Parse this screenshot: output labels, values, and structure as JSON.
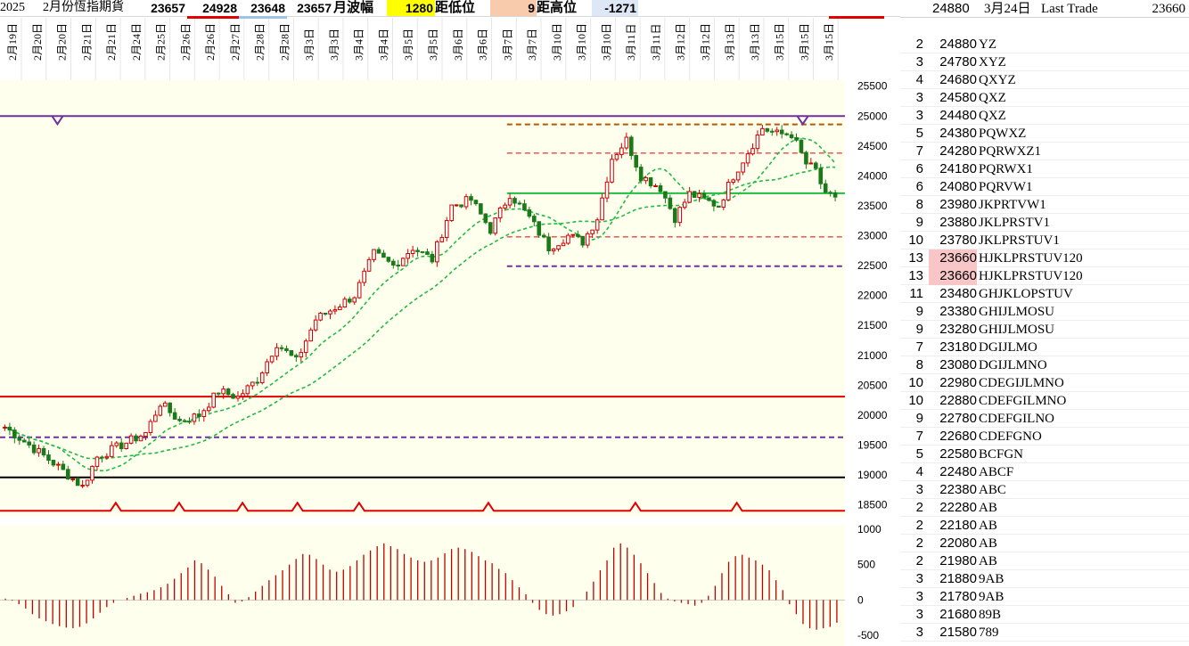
{
  "header": {
    "cells": [
      {
        "key": "year",
        "text": "2025",
        "x": 0,
        "w": 48,
        "bg": "#ffffff",
        "cls": ""
      },
      {
        "key": "title",
        "text": "2月份恆指期貨",
        "x": 48,
        "w": 112,
        "bg": "#ffffff",
        "cls": ""
      },
      {
        "key": "open",
        "text": "23657",
        "x": 160,
        "w": 50,
        "bg": "#ffffff",
        "cls": "num"
      },
      {
        "key": "high",
        "text": "24928",
        "x": 210,
        "w": 58,
        "bg": "#ffffff",
        "cls": "num"
      },
      {
        "key": "low",
        "text": "23648",
        "x": 268,
        "w": 54,
        "bg": "#ffffff",
        "cls": "num"
      },
      {
        "key": "close",
        "text": "23657",
        "x": 322,
        "w": 52,
        "bg": "#ffffff",
        "cls": "num"
      },
      {
        "key": "range_label",
        "text": "月波幅",
        "x": 374,
        "w": 60,
        "bg": "#ffffff",
        "cls": "lbl"
      },
      {
        "key": "range",
        "text": "1280",
        "x": 434,
        "w": 54,
        "bg": "#ffff00",
        "cls": "num"
      },
      {
        "key": "to_low_label",
        "text": "距低位",
        "x": 488,
        "w": 62,
        "bg": "#ffffff",
        "cls": "lbl"
      },
      {
        "key": "to_low",
        "text": "9",
        "x": 550,
        "w": 52,
        "bg": "#f8cbad",
        "cls": "num"
      },
      {
        "key": "to_high_label",
        "text": "距高位",
        "x": 602,
        "w": 62,
        "bg": "#ffffff",
        "cls": "lbl"
      },
      {
        "key": "to_high",
        "text": "-1271",
        "x": 664,
        "w": 52,
        "bg": "#dde7f5",
        "cls": "num"
      }
    ]
  },
  "side": {
    "top_price": "24880",
    "top_date": "3月24日",
    "top_label": "Last Trade",
    "last_value": "23660",
    "rows": [
      {
        "cnt": "2",
        "price": "24880",
        "letters": "YZ",
        "hl": false
      },
      {
        "cnt": "3",
        "price": "24780",
        "letters": "XYZ",
        "hl": false
      },
      {
        "cnt": "4",
        "price": "24680",
        "letters": "QXYZ",
        "hl": false
      },
      {
        "cnt": "3",
        "price": "24580",
        "letters": "QXZ",
        "hl": false
      },
      {
        "cnt": "3",
        "price": "24480",
        "letters": "QXZ",
        "hl": false
      },
      {
        "cnt": "5",
        "price": "24380",
        "letters": "PQWXZ",
        "hl": false
      },
      {
        "cnt": "7",
        "price": "24280",
        "letters": "PQRWXZ1",
        "hl": false
      },
      {
        "cnt": "6",
        "price": "24180",
        "letters": "PQRWX1",
        "hl": false
      },
      {
        "cnt": "6",
        "price": "24080",
        "letters": "PQRVW1",
        "hl": false
      },
      {
        "cnt": "8",
        "price": "23980",
        "letters": "JKPRTVW1",
        "hl": false
      },
      {
        "cnt": "9",
        "price": "23880",
        "letters": "JKLPRSTV1",
        "hl": false
      },
      {
        "cnt": "10",
        "price": "23780",
        "letters": "JKLPRSTUV1",
        "hl": false
      },
      {
        "cnt": "13",
        "price": "23660",
        "letters": "HJKLPRSTUV120",
        "hl": true
      },
      {
        "cnt": "13",
        "price": "23660",
        "letters": "HJKLPRSTUV120",
        "hl": true
      },
      {
        "cnt": "11",
        "price": "23480",
        "letters": "GHJKLOPSTUV",
        "hl": false
      },
      {
        "cnt": "9",
        "price": "23380",
        "letters": "GHIJLMOSU",
        "hl": false
      },
      {
        "cnt": "9",
        "price": "23280",
        "letters": "GHIJLMOSU",
        "hl": false
      },
      {
        "cnt": "7",
        "price": "23180",
        "letters": "DGIJLMO",
        "hl": false
      },
      {
        "cnt": "8",
        "price": "23080",
        "letters": "DGIJLMNO",
        "hl": false
      },
      {
        "cnt": "10",
        "price": "22980",
        "letters": "CDEGIJLMNO",
        "hl": false
      },
      {
        "cnt": "10",
        "price": "22880",
        "letters": "CDEFGILMNO",
        "hl": false
      },
      {
        "cnt": "9",
        "price": "22780",
        "letters": "CDEFGILNO",
        "hl": false
      },
      {
        "cnt": "7",
        "price": "22680",
        "letters": "CDEFGNO",
        "hl": false
      },
      {
        "cnt": "5",
        "price": "22580",
        "letters": "BCFGN",
        "hl": false
      },
      {
        "cnt": "4",
        "price": "22480",
        "letters": "ABCF",
        "hl": false
      },
      {
        "cnt": "3",
        "price": "22380",
        "letters": "ABC",
        "hl": false
      },
      {
        "cnt": "2",
        "price": "22280",
        "letters": "AB",
        "hl": false
      },
      {
        "cnt": "2",
        "price": "22180",
        "letters": "AB",
        "hl": false
      },
      {
        "cnt": "2",
        "price": "22080",
        "letters": "AB",
        "hl": false
      },
      {
        "cnt": "2",
        "price": "21980",
        "letters": "AB",
        "hl": false
      },
      {
        "cnt": "3",
        "price": "21880",
        "letters": "9AB",
        "hl": false
      },
      {
        "cnt": "3",
        "price": "21780",
        "letters": "9AB",
        "hl": false
      },
      {
        "cnt": "3",
        "price": "21680",
        "letters": "89B",
        "hl": false
      },
      {
        "cnt": "3",
        "price": "21580",
        "letters": "789",
        "hl": false
      }
    ]
  },
  "chart_data": {
    "type": "candlestick",
    "x_labels": [
      "2月19日",
      "2月20日",
      "2月20日",
      "2月21日",
      "2月21日",
      "2月24日",
      "2月25日",
      "2月26日",
      "2月26日",
      "2月27日",
      "2月28日",
      "2月28日",
      "3月3日",
      "3月3日",
      "3月4日",
      "3月4日",
      "3月5日",
      "3月5日",
      "3月6日",
      "3月6日",
      "3月7日",
      "3月7日",
      "3月10日",
      "3月10日",
      "3月10日",
      "3月11日",
      "3月11日",
      "3月12日",
      "3月12日",
      "3月13日",
      "3月13日",
      "3月15日",
      "3月15日",
      "3月15日"
    ],
    "price_axis": {
      "min": 18300,
      "max": 25600,
      "ticks": [
        25500,
        25000,
        24500,
        24000,
        23500,
        23000,
        22500,
        22000,
        21500,
        21000,
        20500,
        20000,
        19500,
        19000,
        18500
      ]
    },
    "osc_axis": {
      "min": -650,
      "max": 1050,
      "ticks": [
        1000,
        500,
        0,
        -500
      ]
    },
    "colors": {
      "up": "#d00000",
      "down": "#1a7a1a",
      "ma": "#22bb44",
      "purple": "#7030a0",
      "red": "#e00000",
      "brown": "#b35900",
      "black": "#000000"
    },
    "h_lines": [
      {
        "price": 25000,
        "color": "#7030a0",
        "style": "solid",
        "width": 2,
        "from": 0,
        "to": 1
      },
      {
        "price": 24860,
        "color": "#b35900",
        "style": "dash",
        "width": 2,
        "from": 0.6,
        "to": 1
      },
      {
        "price": 24380,
        "color": "#e00000",
        "style": "dash",
        "width": 1,
        "from": 0.6,
        "to": 1
      },
      {
        "price": 23710,
        "color": "#22bb44",
        "style": "solid",
        "width": 2,
        "from": 0.6,
        "to": 1
      },
      {
        "price": 22980,
        "color": "#e00000",
        "style": "dash",
        "width": 1,
        "from": 0.6,
        "to": 1
      },
      {
        "price": 22490,
        "color": "#7030a0",
        "style": "dash",
        "width": 2,
        "from": 0.6,
        "to": 1
      },
      {
        "price": 20310,
        "color": "#e00000",
        "style": "solid",
        "width": 2,
        "from": 0,
        "to": 1
      },
      {
        "price": 19630,
        "color": "#7030a0",
        "style": "dash",
        "width": 2,
        "from": 0,
        "to": 1
      },
      {
        "price": 18960,
        "color": "#000000",
        "style": "solid",
        "width": 2,
        "from": 0,
        "to": 1
      }
    ],
    "markers_top": {
      "price": 25000,
      "positions": [
        0.068,
        0.95
      ]
    },
    "markers_bottom": {
      "price": 18400,
      "positions": [
        0.137,
        0.212,
        0.287,
        0.352,
        0.425,
        0.578,
        0.752,
        0.872
      ]
    },
    "anchors": [
      [
        0,
        19800
      ],
      [
        5,
        19500
      ],
      [
        10,
        19200
      ],
      [
        16,
        18800
      ],
      [
        19,
        19300
      ],
      [
        24,
        19500
      ],
      [
        29,
        19700
      ],
      [
        32,
        20200
      ],
      [
        36,
        19900
      ],
      [
        40,
        20000
      ],
      [
        44,
        20400
      ],
      [
        48,
        20300
      ],
      [
        52,
        20600
      ],
      [
        56,
        21200
      ],
      [
        60,
        20900
      ],
      [
        64,
        21600
      ],
      [
        68,
        21800
      ],
      [
        72,
        22000
      ],
      [
        76,
        22700
      ],
      [
        80,
        22500
      ],
      [
        84,
        22800
      ],
      [
        88,
        22600
      ],
      [
        92,
        23500
      ],
      [
        96,
        23600
      ],
      [
        100,
        23100
      ],
      [
        104,
        23700
      ],
      [
        108,
        23300
      ],
      [
        112,
        22800
      ],
      [
        116,
        23000
      ],
      [
        119,
        22900
      ],
      [
        122,
        23300
      ],
      [
        125,
        24300
      ],
      [
        128,
        24600
      ],
      [
        131,
        24000
      ],
      [
        135,
        23800
      ],
      [
        138,
        23300
      ],
      [
        141,
        23700
      ],
      [
        144,
        23600
      ],
      [
        147,
        23500
      ],
      [
        150,
        24000
      ],
      [
        153,
        24400
      ],
      [
        156,
        24800
      ],
      [
        159,
        24700
      ],
      [
        162,
        24700
      ],
      [
        165,
        24200
      ],
      [
        167,
        24100
      ],
      [
        169,
        23650
      ],
      [
        171,
        23660
      ]
    ],
    "osc_values": [
      20,
      -10,
      -60,
      -120,
      -200,
      -260,
      -300,
      -340,
      -370,
      -390,
      -400,
      -380,
      -330,
      -260,
      -180,
      -100,
      -40,
      0,
      30,
      60,
      90,
      110,
      140,
      180,
      230,
      300,
      380,
      460,
      560,
      520,
      430,
      330,
      200,
      80,
      -40,
      -20,
      40,
      120,
      200,
      280,
      350,
      420,
      500,
      580,
      650,
      640,
      580,
      500,
      430,
      400,
      430,
      480,
      560,
      640,
      700,
      760,
      800,
      760,
      720,
      650,
      600,
      560,
      540,
      560,
      600,
      660,
      720,
      740,
      720,
      680,
      620,
      560,
      520,
      440,
      380,
      280,
      180,
      80,
      -40,
      -140,
      -200,
      -220,
      -200,
      -160,
      -100,
      0,
      120,
      260,
      420,
      560,
      740,
      800,
      740,
      640,
      520,
      380,
      240,
      100,
      20,
      -20,
      -40,
      -60,
      -80,
      -40,
      60,
      200,
      380,
      540,
      620,
      640,
      600,
      560,
      500,
      420,
      280,
      140,
      -60,
      -200,
      -340,
      -400,
      -420,
      -400,
      -380,
      -320
    ],
    "ma_style": {
      "color": "#22bb44",
      "dash": "4,3"
    }
  }
}
